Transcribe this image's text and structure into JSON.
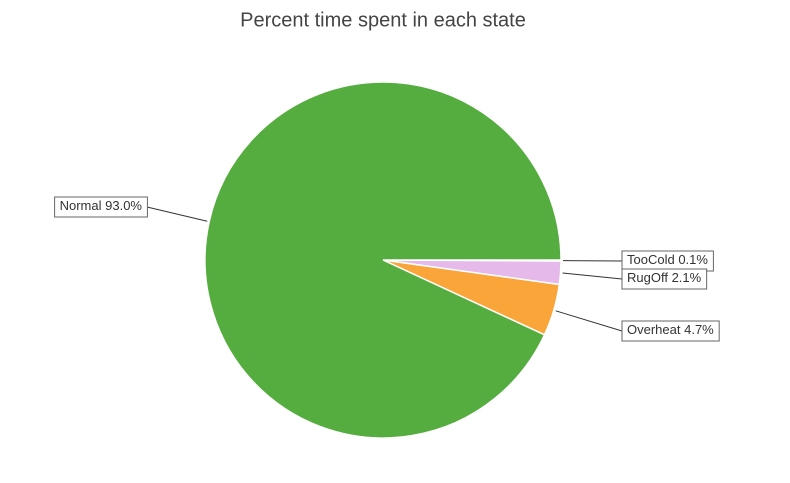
{
  "chart_data": {
    "type": "pie",
    "title": "Percent time spent in each state",
    "categories": [
      "TooCold",
      "RugOff",
      "Overheat",
      "Normal"
    ],
    "values": [
      0.1,
      2.1,
      4.7,
      93.0
    ],
    "value_labels": [
      "0.1%",
      "2.1%",
      "4.7%",
      "93.0%"
    ],
    "colors": [
      "#a9c8ea",
      "#e5b9ea",
      "#f9a53a",
      "#55ad3f"
    ]
  }
}
